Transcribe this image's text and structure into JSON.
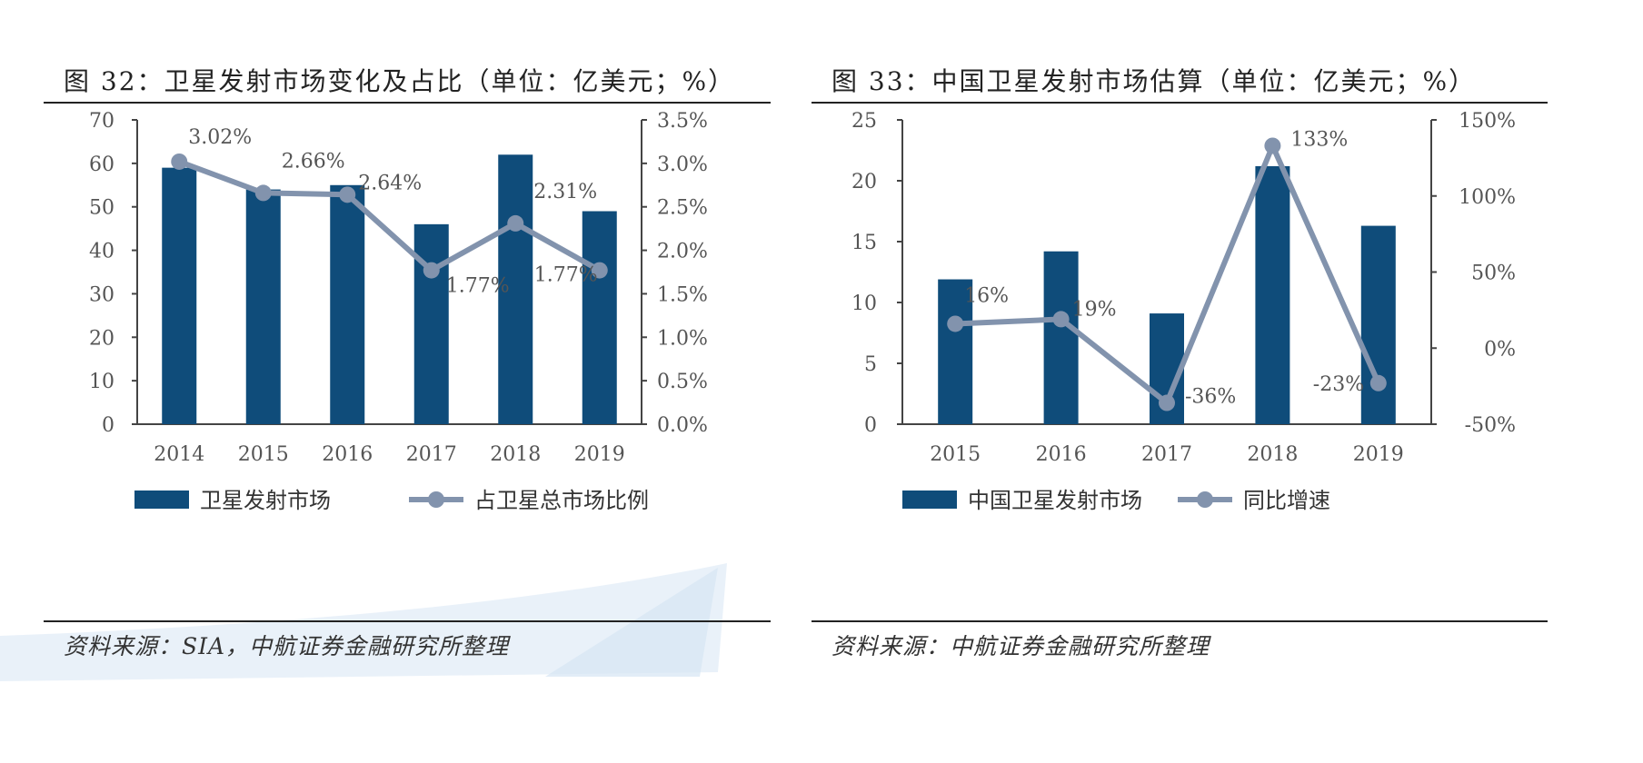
{
  "colors": {
    "bar": "#0f4c7a",
    "line": "#8293ad",
    "axis": "#444444",
    "tick_text": "#555555"
  },
  "charts": [
    {
      "id": "fig32",
      "title": "图 32：卫星发射市场变化及占比（单位：亿美元；%）",
      "source": "资料来源：SIA，中航证券金融研究所整理",
      "legend": {
        "bar": "卫星发射市场",
        "line": "占卫星总市场比例"
      },
      "left_axis_ticks": [
        "0",
        "10",
        "20",
        "30",
        "40",
        "50",
        "60",
        "70"
      ],
      "right_axis_ticks": [
        "0.0%",
        "0.5%",
        "1.0%",
        "1.5%",
        "2.0%",
        "2.5%",
        "3.0%",
        "3.5%"
      ],
      "line_labels": [
        "3.02%",
        "2.66%",
        "2.64%",
        "1.77%",
        "2.31%",
        "1.77%"
      ]
    },
    {
      "id": "fig33",
      "title": "图 33：中国卫星发射市场估算（单位：亿美元；%）",
      "source": "资料来源：中航证券金融研究所整理",
      "legend": {
        "bar": "中国卫星发射市场",
        "line": "同比增速"
      },
      "left_axis_ticks": [
        "0",
        "5",
        "10",
        "15",
        "20",
        "25"
      ],
      "right_axis_ticks": [
        "-50%",
        "0%",
        "50%",
        "100%",
        "150%"
      ],
      "line_labels": [
        "16%",
        "19%",
        "-36%",
        "133%",
        "-23%"
      ]
    }
  ],
  "chart_data": [
    {
      "type": "bar",
      "title": "图 32：卫星发射市场变化及占比（单位：亿美元；%）",
      "categories": [
        "2014",
        "2015",
        "2016",
        "2017",
        "2018",
        "2019"
      ],
      "series": [
        {
          "name": "卫星发射市场",
          "type": "bar",
          "axis": "left",
          "values": [
            59,
            54,
            55,
            46,
            62,
            49
          ]
        },
        {
          "name": "占卫星总市场比例",
          "type": "line",
          "axis": "right",
          "values": [
            3.02,
            2.66,
            2.64,
            1.77,
            2.31,
            1.77
          ]
        }
      ],
      "ylim_left": [
        0,
        70
      ],
      "ylim_right": [
        0,
        3.5
      ],
      "grid": false,
      "legend_position": "bottom"
    },
    {
      "type": "bar",
      "title": "图 33：中国卫星发射市场估算（单位：亿美元；%）",
      "categories": [
        "2015",
        "2016",
        "2017",
        "2018",
        "2019"
      ],
      "series": [
        {
          "name": "中国卫星发射市场",
          "type": "bar",
          "axis": "left",
          "values": [
            11.9,
            14.2,
            9.1,
            21.2,
            16.3
          ]
        },
        {
          "name": "同比增速",
          "type": "line",
          "axis": "right",
          "values": [
            16,
            19,
            -36,
            133,
            -23
          ]
        }
      ],
      "ylim_left": [
        0,
        25
      ],
      "ylim_right": [
        -50,
        150
      ],
      "grid": false,
      "legend_position": "bottom"
    }
  ]
}
